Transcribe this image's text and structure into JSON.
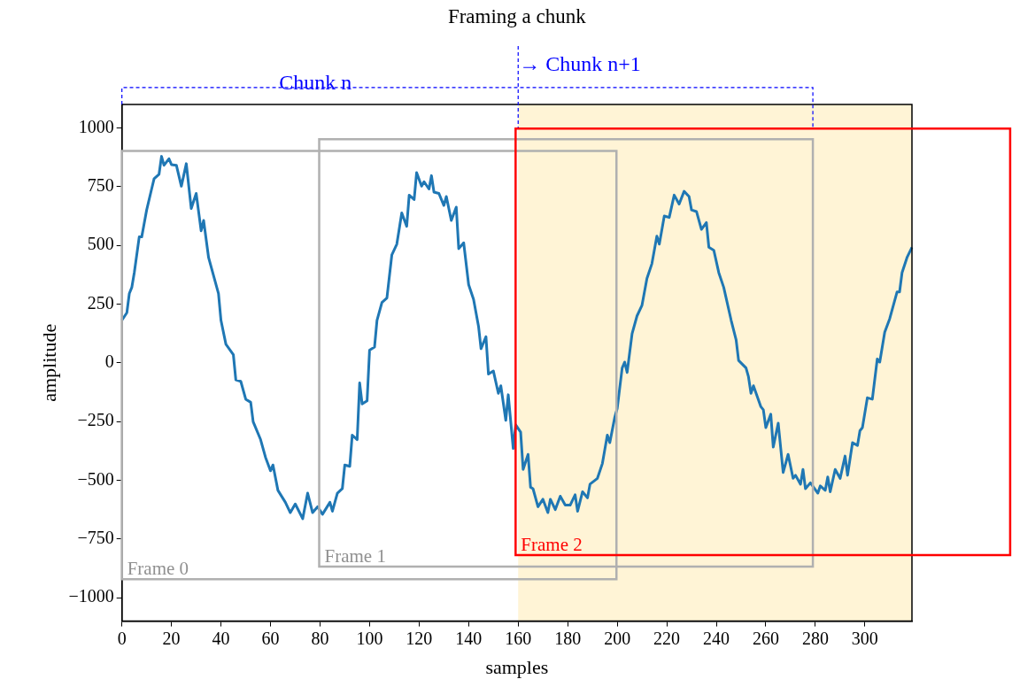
{
  "chart_data": {
    "type": "line",
    "title": "Framing a chunk",
    "xlabel": "samples",
    "ylabel": "amplitude",
    "xlim": [
      0,
      319
    ],
    "xticks": [
      0,
      20,
      40,
      60,
      80,
      100,
      120,
      140,
      160,
      180,
      200,
      220,
      240,
      260,
      280,
      300
    ],
    "ylim": [
      -1100,
      1100
    ],
    "yticks": [
      {
        "value": -1000,
        "label": "−1000"
      },
      {
        "value": -750,
        "label": "−750"
      },
      {
        "value": -500,
        "label": "−500"
      },
      {
        "value": -250,
        "label": "−250"
      },
      0,
      250,
      500,
      750,
      1000
    ],
    "series": [
      {
        "color": "#1f77b4",
        "x": [
          0,
          2,
          3,
          4,
          5,
          7,
          8,
          10,
          12,
          13,
          15,
          16,
          17,
          19,
          20,
          22,
          24,
          26,
          28,
          30,
          32,
          33,
          35,
          39,
          40,
          42,
          45,
          46,
          48,
          50,
          52,
          53,
          56,
          58,
          60,
          61,
          63,
          66,
          68,
          70,
          73,
          75,
          77,
          79,
          81,
          84,
          85,
          87,
          89,
          90,
          92,
          93,
          95,
          96,
          97,
          99,
          100,
          102,
          103,
          105,
          107,
          109,
          111,
          113,
          115,
          116,
          118,
          119,
          121,
          122,
          124,
          125,
          126,
          128,
          130,
          131,
          133,
          135,
          136,
          138,
          140,
          142,
          144,
          145,
          147,
          148,
          150,
          152,
          153,
          155,
          156,
          158,
          159,
          161,
          162,
          164,
          165,
          166,
          168,
          170,
          172,
          173,
          175,
          177,
          179,
          181,
          183,
          184,
          186,
          188,
          189,
          192,
          194,
          196,
          197,
          199,
          200,
          202,
          203,
          204,
          206,
          208,
          210,
          212,
          214,
          216,
          217,
          219,
          221,
          223,
          225,
          227,
          229,
          230,
          232,
          234,
          236,
          237,
          239,
          241,
          243,
          246,
          248,
          249,
          252,
          253,
          254,
          255,
          258,
          259,
          260,
          262,
          263,
          265,
          267,
          269,
          271,
          272,
          274,
          275,
          276,
          278,
          281,
          282,
          284,
          285,
          286,
          288,
          290,
          292,
          293,
          295,
          297,
          298,
          299,
          301,
          303,
          305,
          306,
          308,
          310,
          313,
          314,
          315,
          317,
          319
        ],
        "values": [
          181,
          213,
          295,
          321,
          384,
          536,
          536,
          651,
          740,
          784,
          803,
          879,
          841,
          869,
          844,
          841,
          752,
          848,
          657,
          721,
          562,
          606,
          448,
          295,
          181,
          79,
          35,
          -73,
          -79,
          -155,
          -168,
          -251,
          -327,
          -403,
          -460,
          -435,
          -543,
          -594,
          -638,
          -601,
          -664,
          -555,
          -638,
          -613,
          -645,
          -594,
          -632,
          -555,
          -536,
          -435,
          -441,
          -308,
          -327,
          -86,
          -175,
          -162,
          54,
          67,
          181,
          257,
          276,
          460,
          505,
          638,
          581,
          714,
          695,
          810,
          752,
          771,
          740,
          797,
          727,
          721,
          670,
          708,
          606,
          663,
          486,
          511,
          333,
          270,
          155,
          60,
          111,
          -48,
          -35,
          -130,
          -98,
          -245,
          -136,
          -365,
          -264,
          -295,
          -454,
          -390,
          -530,
          -536,
          -613,
          -581,
          -638,
          -581,
          -625,
          -568,
          -606,
          -606,
          -562,
          -632,
          -549,
          -575,
          -517,
          -492,
          -429,
          -308,
          -340,
          -232,
          -194,
          -22,
          3,
          -41,
          124,
          200,
          245,
          359,
          422,
          539,
          505,
          625,
          619,
          714,
          676,
          730,
          708,
          651,
          644,
          568,
          597,
          492,
          479,
          384,
          321,
          181,
          98,
          10,
          -22,
          -60,
          -130,
          -98,
          -187,
          -200,
          -276,
          -219,
          -359,
          -257,
          -467,
          -390,
          -492,
          -479,
          -517,
          -454,
          -536,
          -511,
          -555,
          -524,
          -543,
          -486,
          -549,
          -454,
          -492,
          -397,
          -479,
          -340,
          -352,
          -289,
          -276,
          -149,
          -155,
          16,
          3,
          130,
          187,
          302,
          302,
          384,
          448,
          492
        ]
      }
    ],
    "annotations": [
      "Frame 0",
      "Frame 1",
      "Frame 2",
      "Chunk n"
    ],
    "bands": [
      {
        "axis": "x",
        "from": 160,
        "to": 319,
        "color": "#fff4d6"
      }
    ],
    "ref_lines": [
      {
        "axis": "x",
        "value": 160,
        "label": "→ Chunk n+1",
        "color": "#0000ff",
        "line_style": "dashed"
      }
    ]
  }
}
